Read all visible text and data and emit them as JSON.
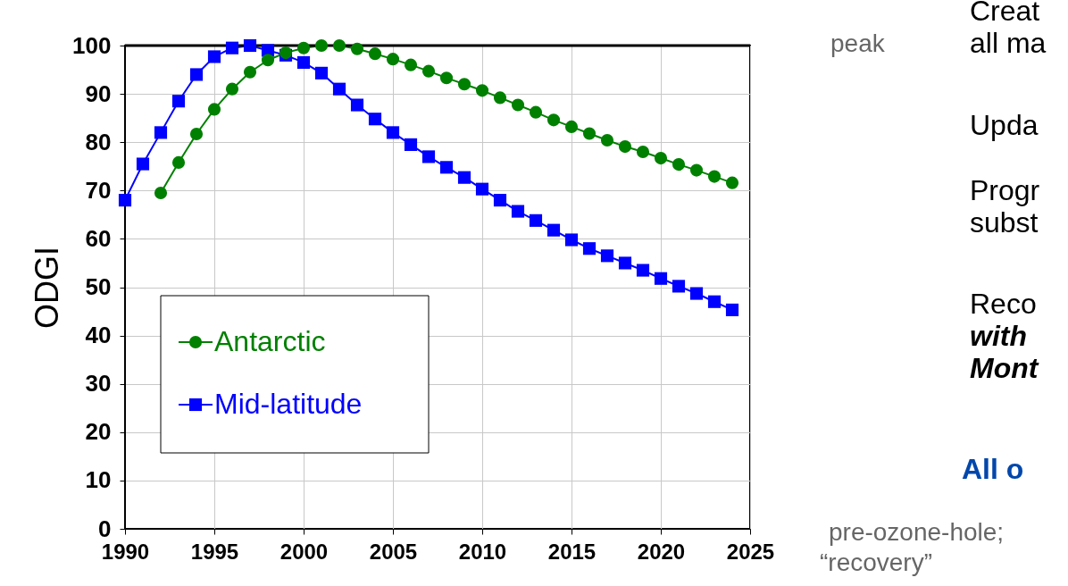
{
  "chart_data": {
    "type": "line",
    "ylabel": "ODGI",
    "xlim": [
      1990,
      2025
    ],
    "xticks": [
      1990,
      1995,
      2000,
      2005,
      2010,
      2015,
      2020,
      2025
    ],
    "ylim": [
      0,
      100
    ],
    "yticks": [
      0,
      10,
      20,
      30,
      40,
      50,
      60,
      70,
      80,
      90,
      100
    ],
    "grid": true,
    "legend": "bottom left",
    "line_style": "solid",
    "series": [
      {
        "name": "Antarctic",
        "color": "#008000",
        "marker": "circle",
        "x": [
          1992,
          1993,
          1994,
          1995,
          1996,
          1997,
          1998,
          1999,
          2000,
          2001,
          2002,
          2003,
          2004,
          2005,
          2006,
          2007,
          2008,
          2009,
          2010,
          2011,
          2012,
          2013,
          2014,
          2015,
          2016,
          2017,
          2018,
          2019,
          2020,
          2021,
          2022,
          2023,
          2024
        ],
        "values": [
          69.5,
          75.8,
          81.7,
          86.8,
          91,
          94.5,
          97,
          98.5,
          99.5,
          100,
          100,
          99.3,
          98.3,
          97.2,
          96,
          94.7,
          93.3,
          92,
          90.7,
          89.2,
          87.7,
          86.2,
          84.6,
          83.2,
          81.8,
          80.4,
          79.1,
          78,
          76.7,
          75.4,
          74.2,
          72.9,
          71.6
        ]
      },
      {
        "name": "Mid-latitude",
        "color": "#0000ff",
        "marker": "square",
        "x": [
          1990,
          1991,
          1992,
          1993,
          1994,
          1995,
          1996,
          1997,
          1998,
          1999,
          2000,
          2001,
          2002,
          2003,
          2004,
          2005,
          2006,
          2007,
          2008,
          2009,
          2010,
          2011,
          2012,
          2013,
          2014,
          2015,
          2016,
          2017,
          2018,
          2019,
          2020,
          2021,
          2022,
          2023,
          2024
        ],
        "values": [
          68,
          75.5,
          82,
          88.5,
          94,
          97.7,
          99.5,
          100,
          99,
          98,
          96.5,
          94.3,
          91,
          87.7,
          84.8,
          82,
          79.5,
          77,
          74.8,
          72.7,
          70.3,
          68,
          65.7,
          63.8,
          61.8,
          59.8,
          58,
          56.5,
          55,
          53.5,
          51.8,
          50.2,
          48.7,
          47,
          45.3
        ]
      }
    ],
    "ref_lines": [
      {
        "axis": "y",
        "value": 100,
        "color": "#000000"
      }
    ],
    "annotations": [
      "peak",
      "pre-ozone-hole;",
      "“recovery”",
      "Creat",
      "all ma",
      "Upda",
      "Progr",
      "subst",
      "Reco",
      "with",
      "Mont",
      "All o"
    ]
  }
}
